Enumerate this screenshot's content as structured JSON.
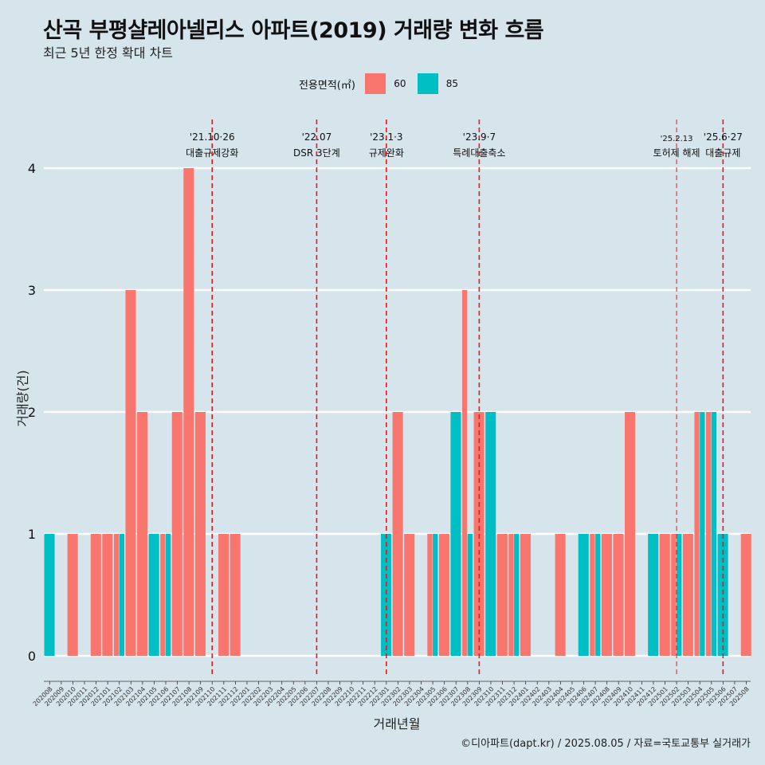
{
  "header": {
    "title": "산곡 부평샬레아넬리스 아파트(2019) 거래량 변화 흐름",
    "subtitle": "최근 5년 한정 확대 차트"
  },
  "legend": {
    "title": "전용면적(㎡)",
    "items": [
      {
        "label": "60",
        "color": "#f8766d"
      },
      {
        "label": "85",
        "color": "#00bfc4"
      }
    ]
  },
  "caption": "©디아파트(dapt.kr) / 2025.08.05 / 자료=국토교통부 실거래가",
  "chart_data": {
    "type": "bar",
    "xlabel": "거래년월",
    "ylabel": "거래량(건)",
    "ylim": [
      -0.18,
      4.4
    ],
    "yticks": [
      0,
      1,
      2,
      3,
      4
    ],
    "categories": [
      "202008",
      "202009",
      "202010",
      "202011",
      "202012",
      "202101",
      "202102",
      "202103",
      "202104",
      "202105",
      "202106",
      "202107",
      "202108",
      "202109",
      "202110",
      "202111",
      "202112",
      "202201",
      "202202",
      "202203",
      "202204",
      "202205",
      "202206",
      "202207",
      "202208",
      "202209",
      "202210",
      "202211",
      "202212",
      "202301",
      "202302",
      "202303",
      "202304",
      "202305",
      "202306",
      "202307",
      "202308",
      "202309",
      "202310",
      "202311",
      "202312",
      "202401",
      "202402",
      "202403",
      "202404",
      "202405",
      "202406",
      "202407",
      "202408",
      "202409",
      "202410",
      "202411",
      "202412",
      "202501",
      "202502",
      "202503",
      "202504",
      "202505",
      "202506",
      "202507",
      "202508"
    ],
    "series": [
      {
        "name": "60",
        "color": "#f8766d",
        "values": [
          0,
          0,
          1,
          0,
          1,
          1,
          1,
          3,
          2,
          0,
          1,
          2,
          4,
          2,
          0,
          1,
          1,
          0,
          0,
          0,
          0,
          0,
          0,
          0,
          0,
          0,
          0,
          0,
          0,
          0,
          2,
          1,
          0,
          1,
          1,
          0,
          3,
          2,
          0,
          1,
          1,
          1,
          0,
          0,
          1,
          0,
          0,
          1,
          1,
          1,
          2,
          0,
          0,
          1,
          1,
          1,
          2,
          2,
          0,
          0,
          1
        ]
      },
      {
        "name": "85",
        "color": "#00bfc4",
        "values": [
          1,
          0,
          0,
          0,
          0,
          0,
          1,
          0,
          0,
          1,
          1,
          0,
          0,
          0,
          0,
          0,
          0,
          0,
          0,
          0,
          0,
          0,
          0,
          0,
          0,
          0,
          0,
          0,
          0,
          1,
          0,
          0,
          0,
          1,
          0,
          2,
          1,
          0,
          2,
          0,
          1,
          0,
          0,
          0,
          0,
          0,
          1,
          1,
          0,
          0,
          0,
          0,
          1,
          0,
          1,
          0,
          2,
          2,
          1,
          0,
          0
        ]
      }
    ],
    "events": [
      {
        "x": "202110",
        "date": "'21.10·26",
        "label": "대출규제강화",
        "small": false
      },
      {
        "x": "202207",
        "date": "'22.07",
        "label": "DSR 3단계",
        "small": false
      },
      {
        "x": "202301",
        "date": "'23.1·3",
        "label": "규제완화",
        "small": false
      },
      {
        "x": "202309",
        "date": "'23.9·7",
        "label": "특례대출축소",
        "small": false
      },
      {
        "x": "202502",
        "date": "'25.2.13",
        "label": "토허제 해제",
        "small": true
      },
      {
        "x": "202506",
        "date": "'25.6·27",
        "label": "대출규제",
        "small": false
      }
    ]
  }
}
